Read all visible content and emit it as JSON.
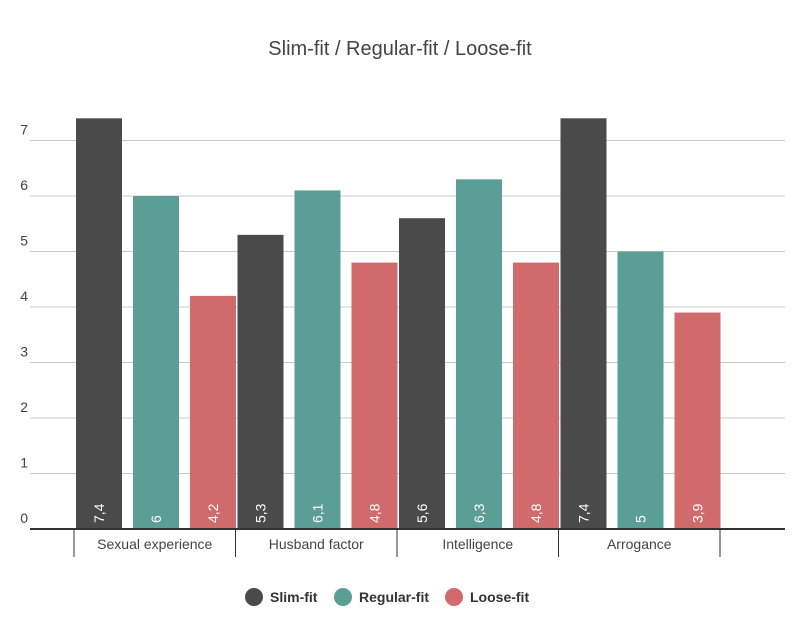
{
  "colors": {
    "background": "#ffffff",
    "gridline": "#c8c8c8",
    "axis": "#333333",
    "text": "#444444",
    "bar_label": "#ffffff"
  },
  "chart_data": {
    "type": "bar",
    "title": "Slim-fit / Regular-fit / Loose-fit",
    "xlabel": "",
    "ylabel": "",
    "ylim": [
      0,
      8
    ],
    "yticks": [
      0,
      1,
      2,
      3,
      4,
      5,
      6,
      7
    ],
    "grid": true,
    "legend_position": "bottom",
    "categories": [
      "Sexual experience",
      "Husband factor",
      "Intelligence",
      "Arrogance"
    ],
    "series": [
      {
        "name": "Slim-fit",
        "color": "#4a4a4a",
        "values": [
          7.4,
          5.3,
          5.6,
          7.4
        ],
        "labels": [
          "7,4",
          "5,3",
          "5,6",
          "7,4"
        ]
      },
      {
        "name": "Regular-fit",
        "color": "#5a9e96",
        "values": [
          6,
          6.1,
          6.3,
          5
        ],
        "labels": [
          "6",
          "6,1",
          "6,3",
          "5"
        ]
      },
      {
        "name": "Loose-fit",
        "color": "#d16b6b",
        "values": [
          4.2,
          4.8,
          4.8,
          3.9
        ],
        "labels": [
          "4,2",
          "4,8",
          "4,8",
          "3,9"
        ]
      }
    ]
  }
}
